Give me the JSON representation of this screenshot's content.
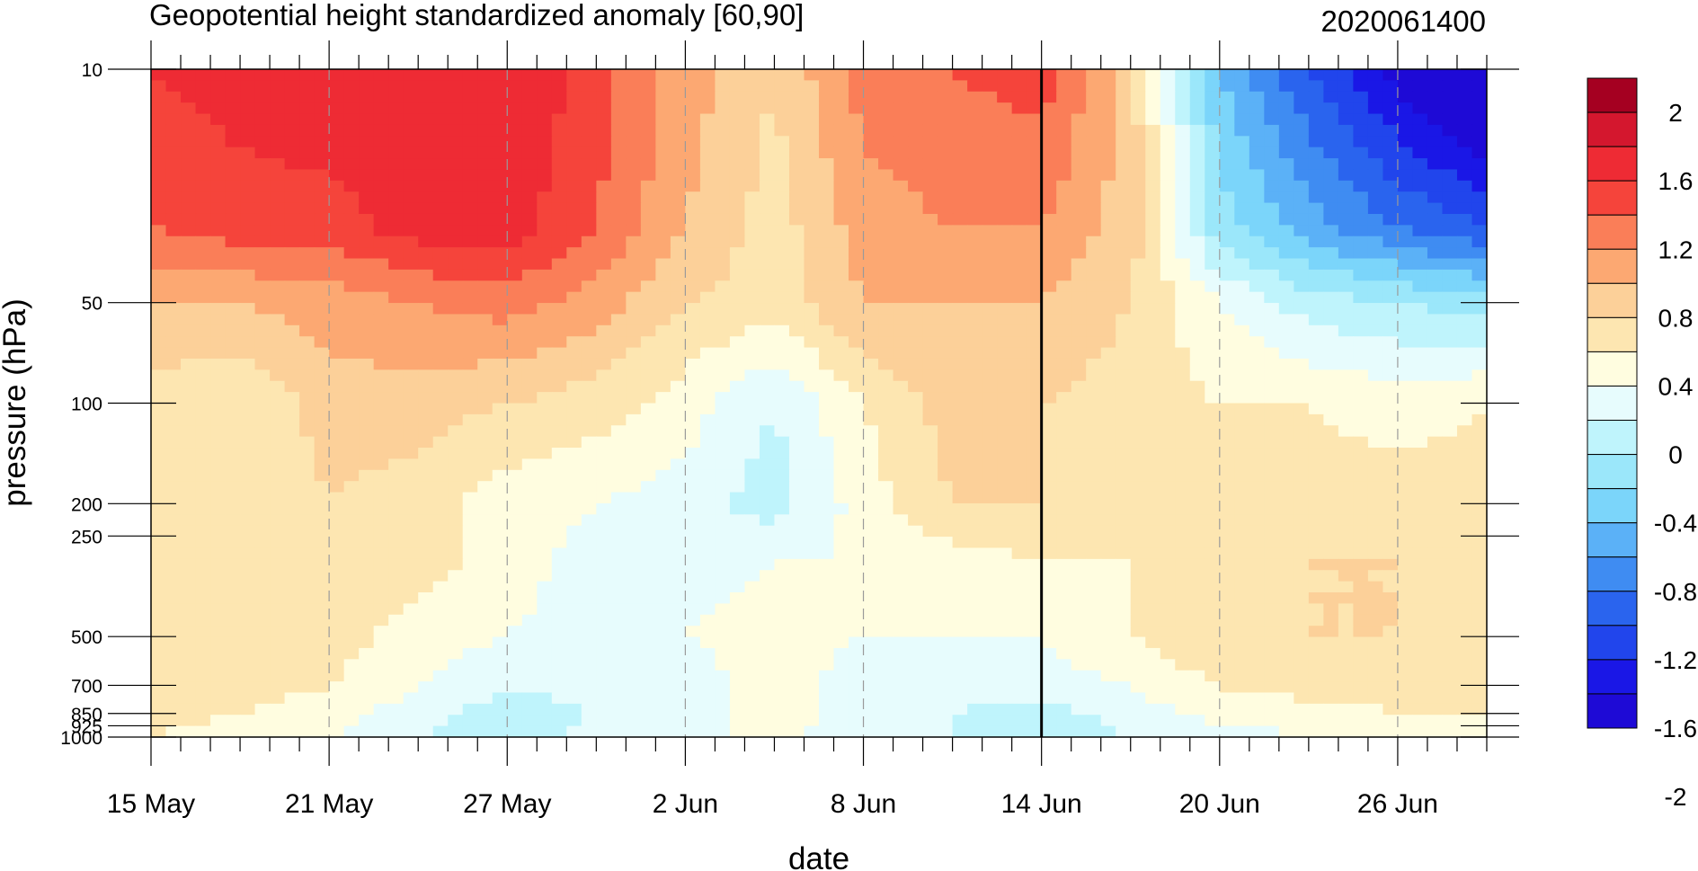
{
  "chart_data": {
    "type": "heatmap",
    "title": "Geopotential height standardized anomaly [60,90]",
    "subtitle": "2020061400",
    "xlabel": "date",
    "ylabel": "pressure (hPa)",
    "x_ticks": [
      "15 May",
      "21 May",
      "27 May",
      "2 Jun",
      "8 Jun",
      "14 Jun",
      "20 Jun",
      "26 Jun"
    ],
    "x_tick_days": [
      0,
      6,
      12,
      18,
      24,
      30,
      36,
      42
    ],
    "x_range_days": [
      0,
      45
    ],
    "y_scale": "log",
    "y_range": [
      1000,
      10
    ],
    "y_ticks": [
      "10",
      "50",
      "100",
      "200",
      "250",
      "500",
      "700",
      "850",
      "925",
      "1000"
    ],
    "y_tick_values": [
      10,
      50,
      100,
      200,
      250,
      500,
      700,
      850,
      925,
      1000
    ],
    "current_date_marker": "14 Jun",
    "current_date_day": 30,
    "colorbar": {
      "labels": [
        "2",
        "1.6",
        "1.2",
        "0.8",
        "0.4",
        "0",
        "-0.4",
        "-0.8",
        "-1.2",
        "-1.6",
        "-2"
      ],
      "label_values": [
        2,
        1.6,
        1.2,
        0.8,
        0.4,
        0,
        -0.4,
        -0.8,
        -1.2,
        -1.6,
        -2
      ],
      "colors": [
        "#a50021",
        "#d4172e",
        "#ee2b34",
        "#f5443b",
        "#fa7e58",
        "#fca872",
        "#fcd099",
        "#fde6b1",
        "#fffde0",
        "#e7fcfd",
        "#bff4fc",
        "#9be7fa",
        "#7bd5fa",
        "#5bb1f7",
        "#3f8cf2",
        "#2a64ee",
        "#2145ec",
        "#1a17e6",
        "#1e0ad6"
      ]
    },
    "levels": [
      -2.4,
      -2.2,
      -2.0,
      -1.8,
      -1.6,
      -1.4,
      -1.2,
      -1.0,
      -0.8,
      -0.6,
      -0.4,
      -0.2,
      0,
      0.2,
      0.4,
      0.6,
      0.8,
      1.0,
      1.2,
      1.4,
      1.6,
      1.8,
      2.0
    ],
    "grid_days": [
      0,
      3,
      6,
      9,
      12,
      15,
      18,
      21,
      24,
      27,
      30,
      33,
      36,
      39,
      42,
      45
    ],
    "grid_pressure": [
      10,
      30,
      50,
      100,
      200,
      300,
      500,
      700,
      850,
      1000
    ],
    "values": [
      [
        1.4,
        1.5,
        1.6,
        1.6,
        1.6,
        1.3,
        0.9,
        0.6,
        1.1,
        1.2,
        1.3,
        0.7,
        -0.6,
        -1.2,
        -1.7,
        -2.1
      ],
      [
        1.2,
        1.3,
        1.3,
        1.5,
        1.5,
        1.2,
        0.8,
        0.5,
        0.9,
        1.0,
        1.0,
        0.7,
        -0.3,
        -0.7,
        -1.0,
        -1.2
      ],
      [
        0.8,
        0.8,
        0.9,
        1.0,
        1.1,
        0.9,
        0.6,
        0.5,
        0.8,
        0.8,
        0.8,
        0.6,
        0.2,
        -0.1,
        -0.2,
        -0.3
      ],
      [
        0.5,
        0.4,
        0.7,
        0.7,
        0.6,
        0.5,
        0.3,
        0.0,
        0.4,
        0.7,
        0.6,
        0.5,
        0.4,
        0.4,
        0.3,
        0.4
      ],
      [
        0.6,
        0.4,
        0.6,
        0.5,
        0.3,
        0.2,
        0.1,
        -0.1,
        0.3,
        0.6,
        0.6,
        0.5,
        0.4,
        0.5,
        0.5,
        0.5
      ],
      [
        0.6,
        0.5,
        0.6,
        0.5,
        0.3,
        0.1,
        0.1,
        0.2,
        0.2,
        0.3,
        0.4,
        0.4,
        0.5,
        0.6,
        0.6,
        0.5
      ],
      [
        0.5,
        0.5,
        0.5,
        0.3,
        0.2,
        0.1,
        0.2,
        0.3,
        0.2,
        0.2,
        0.2,
        0.4,
        0.6,
        0.6,
        0.6,
        0.5
      ],
      [
        0.5,
        0.5,
        0.4,
        0.2,
        0.0,
        0.1,
        0.1,
        0.3,
        0.1,
        0.1,
        0.1,
        0.2,
        0.4,
        0.5,
        0.5,
        0.4
      ],
      [
        0.5,
        0.4,
        0.3,
        0.1,
        -0.1,
        0.0,
        0.1,
        0.3,
        0.1,
        0.0,
        -0.1,
        0.1,
        0.3,
        0.3,
        0.4,
        0.4
      ],
      [
        0.4,
        0.3,
        0.2,
        0.0,
        -0.2,
        0.1,
        0.1,
        0.3,
        0.0,
        0.0,
        -0.2,
        0.0,
        0.1,
        0.2,
        0.2,
        0.2
      ]
    ]
  }
}
